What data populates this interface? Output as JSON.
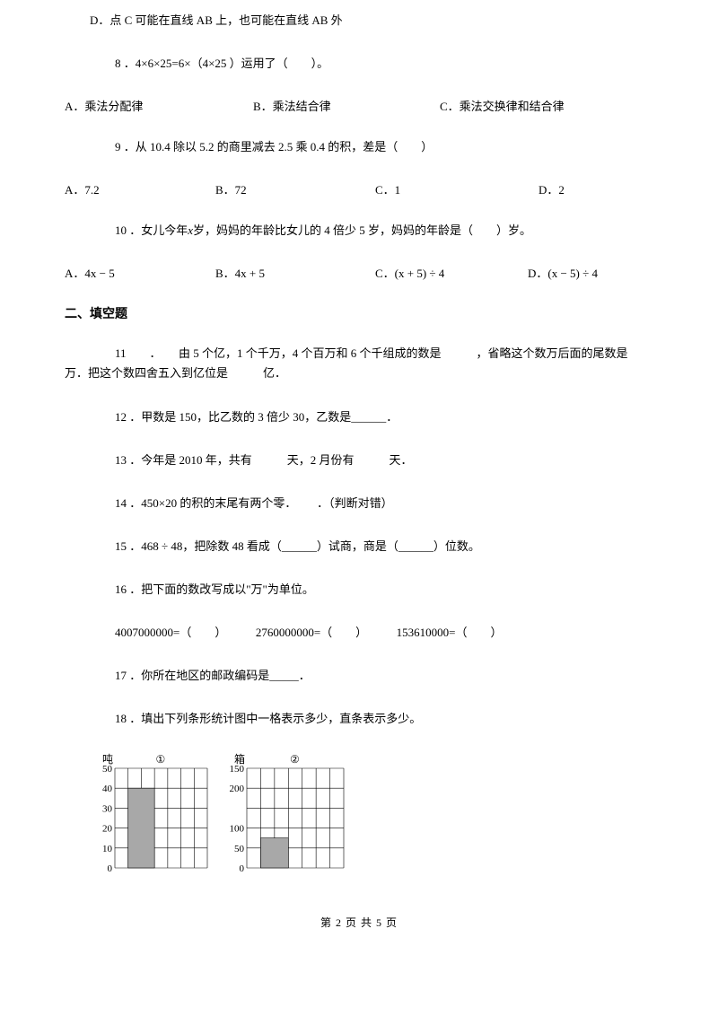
{
  "qD": "D．点 C 可能在直线 AB 上，也可能在直线 AB 外",
  "q8": "8 ．4×6×25=6×（4×25 ）运用了（　　）。",
  "q8opts": {
    "a": "A．乘法分配律",
    "b": "B．乘法结合律",
    "c": "C．乘法交换律和结合律"
  },
  "q9": "9 ．从 10.4 除以 5.2 的商里减去 2.5 乘 0.4 的积，差是（　　）",
  "q9opts": {
    "a": "A．7.2",
    "b": "B．72",
    "c": "C．1",
    "d": "D．2"
  },
  "q10_pre": "10 ．女儿今年",
  "q10_mid": "岁，妈妈的年龄比女儿的 4 倍少 5 岁，妈妈的年龄是（　　）岁。",
  "q10x": "x",
  "q10opts": {
    "a_pre": "A．",
    "a_expr": "4x − 5",
    "b_pre": "B．",
    "b_expr": "4x + 5",
    "c_pre": "C．",
    "c_expr": "(x + 5) ÷ 4",
    "d_pre": "D．",
    "d_expr": "(x − 5) ÷ 4"
  },
  "section2": "二、填空题",
  "q11": "11　　．　　由 5 个亿，1 个千万，4 个百万和 6 个千组成的数是　　　，省略这个数万后面的尾数是　　　万．把这个数四舍五入到亿位是　　　亿．",
  "q12": "12 ．甲数是 150，比乙数的 3 倍少 30，乙数是______．",
  "q13": "13 ．今年是 2010 年，共有　　　天，2 月份有　　　天．",
  "q14": "14 ．450×20 的积的末尾有两个零．　　 ．（判断对错）",
  "q15_pre": "15 ．",
  "q15_expr": "468 ÷ 48",
  "q15_post": "，把除数 48 看成（______）试商，商是（______）位数。",
  "q16a": "16 ．把下面的数改写成以\"万\"为单位。",
  "q16b": "4007000000=（　　）　　　2760000000=（　　）　　　153610000=（　　）",
  "q17": "17 ．你所在地区的邮政编码是_____．",
  "q18": "18 ．填出下列条形统计图中一格表示多少，直条表示多少。",
  "chart1": {
    "ylabel": "吨",
    "circle": "①",
    "yticks": [
      "50",
      "40",
      "30",
      "20",
      "10",
      "0"
    ],
    "bar_value": 40,
    "ymax": 50,
    "colors": {
      "bar": "#a8a8a8",
      "grid": "#000000",
      "bg": "#ffffff"
    },
    "width": 135,
    "height": 135,
    "inner_cols": 7,
    "inner_rows": 5,
    "bar_col_start": 1,
    "bar_col_span": 2
  },
  "chart2": {
    "ylabel": "箱",
    "circle": "②",
    "yticks": [
      "150",
      "200",
      "100",
      "50",
      "0"
    ],
    "yticks_pos": [
      0,
      1,
      3,
      4,
      5
    ],
    "bar_value": 75,
    "ymax": 250,
    "colors": {
      "bar": "#a8a8a8",
      "grid": "#000000",
      "bg": "#ffffff"
    },
    "width": 140,
    "height": 135,
    "inner_cols": 7,
    "inner_rows": 5,
    "bar_col_start": 1,
    "bar_col_span": 2
  },
  "footer": "第 2 页 共 5 页"
}
